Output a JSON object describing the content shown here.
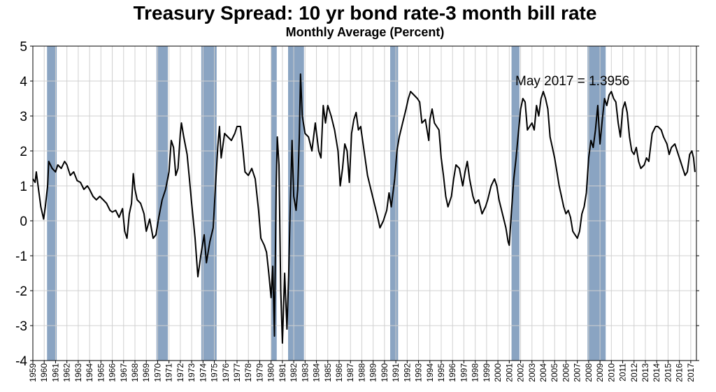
{
  "chart_data": {
    "type": "line",
    "title": "Treasury Spread: 10 yr bond rate-3 month bill rate",
    "subtitle": "Monthly Average (Percent)",
    "xlabel": "",
    "ylabel": "",
    "xlim": [
      1959.0,
      2017.5
    ],
    "ylim": [
      -4,
      5
    ],
    "yticks": [
      "5",
      "4",
      "3",
      "2",
      "1",
      "0",
      "-1",
      "-2",
      "-3",
      "-4"
    ],
    "xtick_labels": [
      "1959",
      "1960",
      "1961",
      "1962",
      "1963",
      "1964",
      "1965",
      "1966",
      "1967",
      "1968",
      "1969",
      "1970",
      "1971",
      "1972",
      "1973",
      "1974",
      "1975",
      "1976",
      "1977",
      "1978",
      "1979",
      "1980",
      "1981",
      "1982",
      "1983",
      "1984",
      "1985",
      "1986",
      "1987",
      "1988",
      "1989",
      "1990",
      "1991",
      "1992",
      "1993",
      "1994",
      "1995",
      "1996",
      "1997",
      "1998",
      "1999",
      "2000",
      "2001",
      "2002",
      "2003",
      "2004",
      "2005",
      "2006",
      "2007",
      "2008",
      "2009",
      "2010",
      "2011",
      "2012",
      "2013",
      "2014",
      "2015",
      "2016",
      "2017"
    ],
    "grid": true,
    "legend": "none",
    "recession_color": "#8aa4c2",
    "line_color": "#000000",
    "recessions": [
      [
        1960.25,
        1961.1
      ],
      [
        1969.9,
        1970.9
      ],
      [
        1973.85,
        1975.2
      ],
      [
        1980.0,
        1980.5
      ],
      [
        1981.5,
        1982.9
      ],
      [
        1990.5,
        1991.2
      ],
      [
        2001.2,
        2001.9
      ],
      [
        2007.9,
        2009.5
      ]
    ],
    "annotation": "May 2017 = 1.3956",
    "series": [
      {
        "values": [
          [
            1959.0,
            1.2
          ],
          [
            1959.2,
            1.1
          ],
          [
            1959.3,
            1.4
          ],
          [
            1959.5,
            0.9
          ],
          [
            1959.7,
            0.4
          ],
          [
            1959.95,
            0.05
          ],
          [
            1960.1,
            0.4
          ],
          [
            1960.3,
            1.0
          ],
          [
            1960.4,
            1.7
          ],
          [
            1960.7,
            1.5
          ],
          [
            1961.0,
            1.4
          ],
          [
            1961.2,
            1.6
          ],
          [
            1961.5,
            1.5
          ],
          [
            1961.8,
            1.7
          ],
          [
            1962.0,
            1.6
          ],
          [
            1962.3,
            1.3
          ],
          [
            1962.6,
            1.4
          ],
          [
            1962.9,
            1.15
          ],
          [
            1963.2,
            1.1
          ],
          [
            1963.5,
            0.9
          ],
          [
            1963.8,
            1.0
          ],
          [
            1964.0,
            0.9
          ],
          [
            1964.3,
            0.7
          ],
          [
            1964.6,
            0.6
          ],
          [
            1964.9,
            0.7
          ],
          [
            1965.2,
            0.6
          ],
          [
            1965.5,
            0.5
          ],
          [
            1965.8,
            0.3
          ],
          [
            1966.0,
            0.25
          ],
          [
            1966.3,
            0.3
          ],
          [
            1966.6,
            0.1
          ],
          [
            1966.9,
            0.35
          ],
          [
            1967.1,
            -0.3
          ],
          [
            1967.3,
            -0.5
          ],
          [
            1967.5,
            0.2
          ],
          [
            1967.7,
            0.5
          ],
          [
            1967.85,
            1.35
          ],
          [
            1968.0,
            0.9
          ],
          [
            1968.2,
            0.6
          ],
          [
            1968.5,
            0.5
          ],
          [
            1968.8,
            0.2
          ],
          [
            1969.0,
            -0.3
          ],
          [
            1969.3,
            0.05
          ],
          [
            1969.6,
            -0.5
          ],
          [
            1969.85,
            -0.4
          ],
          [
            1970.1,
            0.1
          ],
          [
            1970.4,
            0.6
          ],
          [
            1970.7,
            0.9
          ],
          [
            1971.0,
            1.4
          ],
          [
            1971.2,
            2.3
          ],
          [
            1971.4,
            2.1
          ],
          [
            1971.6,
            1.3
          ],
          [
            1971.8,
            1.5
          ],
          [
            1972.0,
            2.5
          ],
          [
            1972.1,
            2.8
          ],
          [
            1972.3,
            2.4
          ],
          [
            1972.6,
            1.9
          ],
          [
            1972.8,
            1.2
          ],
          [
            1973.0,
            0.5
          ],
          [
            1973.3,
            -0.5
          ],
          [
            1973.55,
            -1.6
          ],
          [
            1973.8,
            -1.0
          ],
          [
            1974.1,
            -0.4
          ],
          [
            1974.3,
            -1.2
          ],
          [
            1974.6,
            -0.6
          ],
          [
            1974.9,
            -0.2
          ],
          [
            1975.1,
            1.0
          ],
          [
            1975.3,
            2.1
          ],
          [
            1975.45,
            2.7
          ],
          [
            1975.6,
            1.8
          ],
          [
            1975.9,
            2.5
          ],
          [
            1976.2,
            2.4
          ],
          [
            1976.5,
            2.3
          ],
          [
            1976.8,
            2.5
          ],
          [
            1977.0,
            2.7
          ],
          [
            1977.3,
            2.7
          ],
          [
            1977.5,
            2.1
          ],
          [
            1977.7,
            1.4
          ],
          [
            1978.0,
            1.3
          ],
          [
            1978.3,
            1.5
          ],
          [
            1978.6,
            1.2
          ],
          [
            1978.9,
            0.3
          ],
          [
            1979.1,
            -0.5
          ],
          [
            1979.4,
            -0.7
          ],
          [
            1979.6,
            -0.9
          ],
          [
            1979.8,
            -1.5
          ],
          [
            1980.0,
            -2.2
          ],
          [
            1980.15,
            -1.3
          ],
          [
            1980.3,
            -3.3
          ],
          [
            1980.45,
            1.0
          ],
          [
            1980.55,
            2.4
          ],
          [
            1980.7,
            1.6
          ],
          [
            1980.85,
            -2.0
          ],
          [
            1981.0,
            -3.5
          ],
          [
            1981.2,
            -1.5
          ],
          [
            1981.4,
            -3.1
          ],
          [
            1981.55,
            -1.6
          ],
          [
            1981.7,
            0.5
          ],
          [
            1981.85,
            2.3
          ],
          [
            1982.0,
            0.7
          ],
          [
            1982.2,
            0.3
          ],
          [
            1982.35,
            0.9
          ],
          [
            1982.5,
            2.5
          ],
          [
            1982.6,
            4.2
          ],
          [
            1982.75,
            3.0
          ],
          [
            1983.0,
            2.5
          ],
          [
            1983.3,
            2.4
          ],
          [
            1983.6,
            2.0
          ],
          [
            1983.9,
            2.8
          ],
          [
            1984.2,
            2.0
          ],
          [
            1984.4,
            1.8
          ],
          [
            1984.6,
            3.3
          ],
          [
            1984.8,
            2.8
          ],
          [
            1985.0,
            3.3
          ],
          [
            1985.3,
            3.0
          ],
          [
            1985.6,
            2.6
          ],
          [
            1985.9,
            2.0
          ],
          [
            1986.1,
            1.0
          ],
          [
            1986.3,
            1.5
          ],
          [
            1986.5,
            2.2
          ],
          [
            1986.7,
            2.0
          ],
          [
            1986.9,
            1.1
          ],
          [
            1987.1,
            2.5
          ],
          [
            1987.3,
            2.9
          ],
          [
            1987.5,
            3.1
          ],
          [
            1987.7,
            2.6
          ],
          [
            1987.9,
            2.7
          ],
          [
            1988.2,
            2.0
          ],
          [
            1988.5,
            1.3
          ],
          [
            1988.8,
            0.9
          ],
          [
            1989.1,
            0.5
          ],
          [
            1989.4,
            0.1
          ],
          [
            1989.6,
            -0.2
          ],
          [
            1989.9,
            0.0
          ],
          [
            1990.2,
            0.3
          ],
          [
            1990.4,
            0.8
          ],
          [
            1990.6,
            0.4
          ],
          [
            1990.9,
            1.2
          ],
          [
            1991.1,
            2.0
          ],
          [
            1991.3,
            2.4
          ],
          [
            1991.6,
            2.8
          ],
          [
            1991.9,
            3.2
          ],
          [
            1992.1,
            3.5
          ],
          [
            1992.3,
            3.7
          ],
          [
            1992.6,
            3.6
          ],
          [
            1992.9,
            3.5
          ],
          [
            1993.1,
            3.4
          ],
          [
            1993.3,
            2.8
          ],
          [
            1993.6,
            2.9
          ],
          [
            1993.9,
            2.3
          ],
          [
            1994.0,
            2.9
          ],
          [
            1994.2,
            3.2
          ],
          [
            1994.4,
            2.8
          ],
          [
            1994.6,
            2.7
          ],
          [
            1994.8,
            2.6
          ],
          [
            1995.0,
            1.8
          ],
          [
            1995.2,
            1.3
          ],
          [
            1995.4,
            0.7
          ],
          [
            1995.6,
            0.4
          ],
          [
            1995.9,
            0.7
          ],
          [
            1996.1,
            1.2
          ],
          [
            1996.3,
            1.6
          ],
          [
            1996.6,
            1.5
          ],
          [
            1996.9,
            1.0
          ],
          [
            1997.1,
            1.4
          ],
          [
            1997.3,
            1.7
          ],
          [
            1997.5,
            1.2
          ],
          [
            1997.8,
            0.7
          ],
          [
            1998.0,
            0.5
          ],
          [
            1998.3,
            0.6
          ],
          [
            1998.6,
            0.2
          ],
          [
            1998.9,
            0.4
          ],
          [
            1999.1,
            0.6
          ],
          [
            1999.4,
            1.0
          ],
          [
            1999.7,
            1.2
          ],
          [
            1999.9,
            1.0
          ],
          [
            2000.1,
            0.6
          ],
          [
            2000.4,
            0.2
          ],
          [
            2000.7,
            -0.2
          ],
          [
            2000.9,
            -0.6
          ],
          [
            2001.0,
            -0.7
          ],
          [
            2001.2,
            0.3
          ],
          [
            2001.4,
            1.2
          ],
          [
            2001.6,
            1.8
          ],
          [
            2001.8,
            2.5
          ],
          [
            2002.0,
            3.2
          ],
          [
            2002.2,
            3.5
          ],
          [
            2002.4,
            3.4
          ],
          [
            2002.6,
            2.6
          ],
          [
            2002.8,
            2.7
          ],
          [
            2003.0,
            2.8
          ],
          [
            2003.2,
            2.6
          ],
          [
            2003.4,
            3.3
          ],
          [
            2003.6,
            3.0
          ],
          [
            2003.8,
            3.5
          ],
          [
            2004.0,
            3.7
          ],
          [
            2004.2,
            3.5
          ],
          [
            2004.4,
            3.2
          ],
          [
            2004.6,
            2.4
          ],
          [
            2004.8,
            2.1
          ],
          [
            2005.0,
            1.8
          ],
          [
            2005.2,
            1.4
          ],
          [
            2005.4,
            1.0
          ],
          [
            2005.6,
            0.7
          ],
          [
            2005.8,
            0.4
          ],
          [
            2006.0,
            0.2
          ],
          [
            2006.2,
            0.3
          ],
          [
            2006.4,
            0.1
          ],
          [
            2006.6,
            -0.3
          ],
          [
            2006.8,
            -0.4
          ],
          [
            2007.0,
            -0.5
          ],
          [
            2007.2,
            -0.3
          ],
          [
            2007.4,
            0.2
          ],
          [
            2007.6,
            0.4
          ],
          [
            2007.8,
            0.8
          ],
          [
            2008.0,
            1.8
          ],
          [
            2008.2,
            2.3
          ],
          [
            2008.4,
            2.1
          ],
          [
            2008.6,
            2.6
          ],
          [
            2008.8,
            3.3
          ],
          [
            2009.0,
            2.2
          ],
          [
            2009.2,
            2.9
          ],
          [
            2009.4,
            3.5
          ],
          [
            2009.6,
            3.3
          ],
          [
            2009.8,
            3.6
          ],
          [
            2010.0,
            3.7
          ],
          [
            2010.2,
            3.5
          ],
          [
            2010.4,
            3.4
          ],
          [
            2010.6,
            2.8
          ],
          [
            2010.8,
            2.4
          ],
          [
            2011.0,
            3.2
          ],
          [
            2011.2,
            3.4
          ],
          [
            2011.4,
            3.1
          ],
          [
            2011.6,
            2.4
          ],
          [
            2011.8,
            2.0
          ],
          [
            2012.0,
            1.9
          ],
          [
            2012.2,
            2.1
          ],
          [
            2012.4,
            1.7
          ],
          [
            2012.6,
            1.5
          ],
          [
            2012.9,
            1.6
          ],
          [
            2013.1,
            1.8
          ],
          [
            2013.3,
            1.7
          ],
          [
            2013.6,
            2.5
          ],
          [
            2013.9,
            2.7
          ],
          [
            2014.1,
            2.7
          ],
          [
            2014.4,
            2.6
          ],
          [
            2014.6,
            2.4
          ],
          [
            2014.9,
            2.2
          ],
          [
            2015.1,
            1.9
          ],
          [
            2015.3,
            2.1
          ],
          [
            2015.6,
            2.2
          ],
          [
            2015.9,
            1.9
          ],
          [
            2016.1,
            1.7
          ],
          [
            2016.3,
            1.5
          ],
          [
            2016.5,
            1.3
          ],
          [
            2016.7,
            1.4
          ],
          [
            2016.9,
            1.9
          ],
          [
            2017.1,
            2.0
          ],
          [
            2017.25,
            1.8
          ],
          [
            2017.37,
            1.3956
          ]
        ]
      }
    ]
  }
}
